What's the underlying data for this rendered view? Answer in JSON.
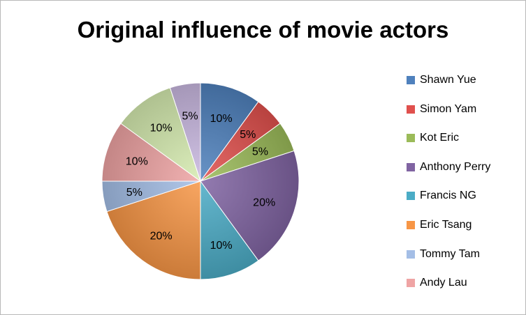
{
  "chart_data": {
    "type": "pie",
    "title": "Original influence of movie actors",
    "slices": [
      {
        "label": "Shawn Yue",
        "value": 10,
        "display": "10%",
        "color": "#4F81BD"
      },
      {
        "label": "Simon Yam",
        "value": 5,
        "display": "5%",
        "color": "#E0504D"
      },
      {
        "label": "Kot Eric",
        "value": 5,
        "display": "5%",
        "color": "#9BBB59"
      },
      {
        "label": "Anthony Perry",
        "value": 20,
        "display": "20%",
        "color": "#8064A2"
      },
      {
        "label": "Francis NG",
        "value": 10,
        "display": "10%",
        "color": "#4BACC6"
      },
      {
        "label": "Eric Tsang",
        "value": 20,
        "display": "20%",
        "color": "#F79646"
      },
      {
        "label": "Tommy Tam",
        "value": 5,
        "display": "5%",
        "color": "#A4BEE6"
      },
      {
        "label": "Andy Lau",
        "value": 10,
        "display": "10%",
        "color": "#EFA4A4"
      },
      {
        "label": "",
        "value": 10,
        "display": "10%",
        "color": "#D6EBB0"
      },
      {
        "label": "",
        "value": 5,
        "display": "5%",
        "color": "#C9B8E0"
      }
    ],
    "legend_position": "right"
  }
}
